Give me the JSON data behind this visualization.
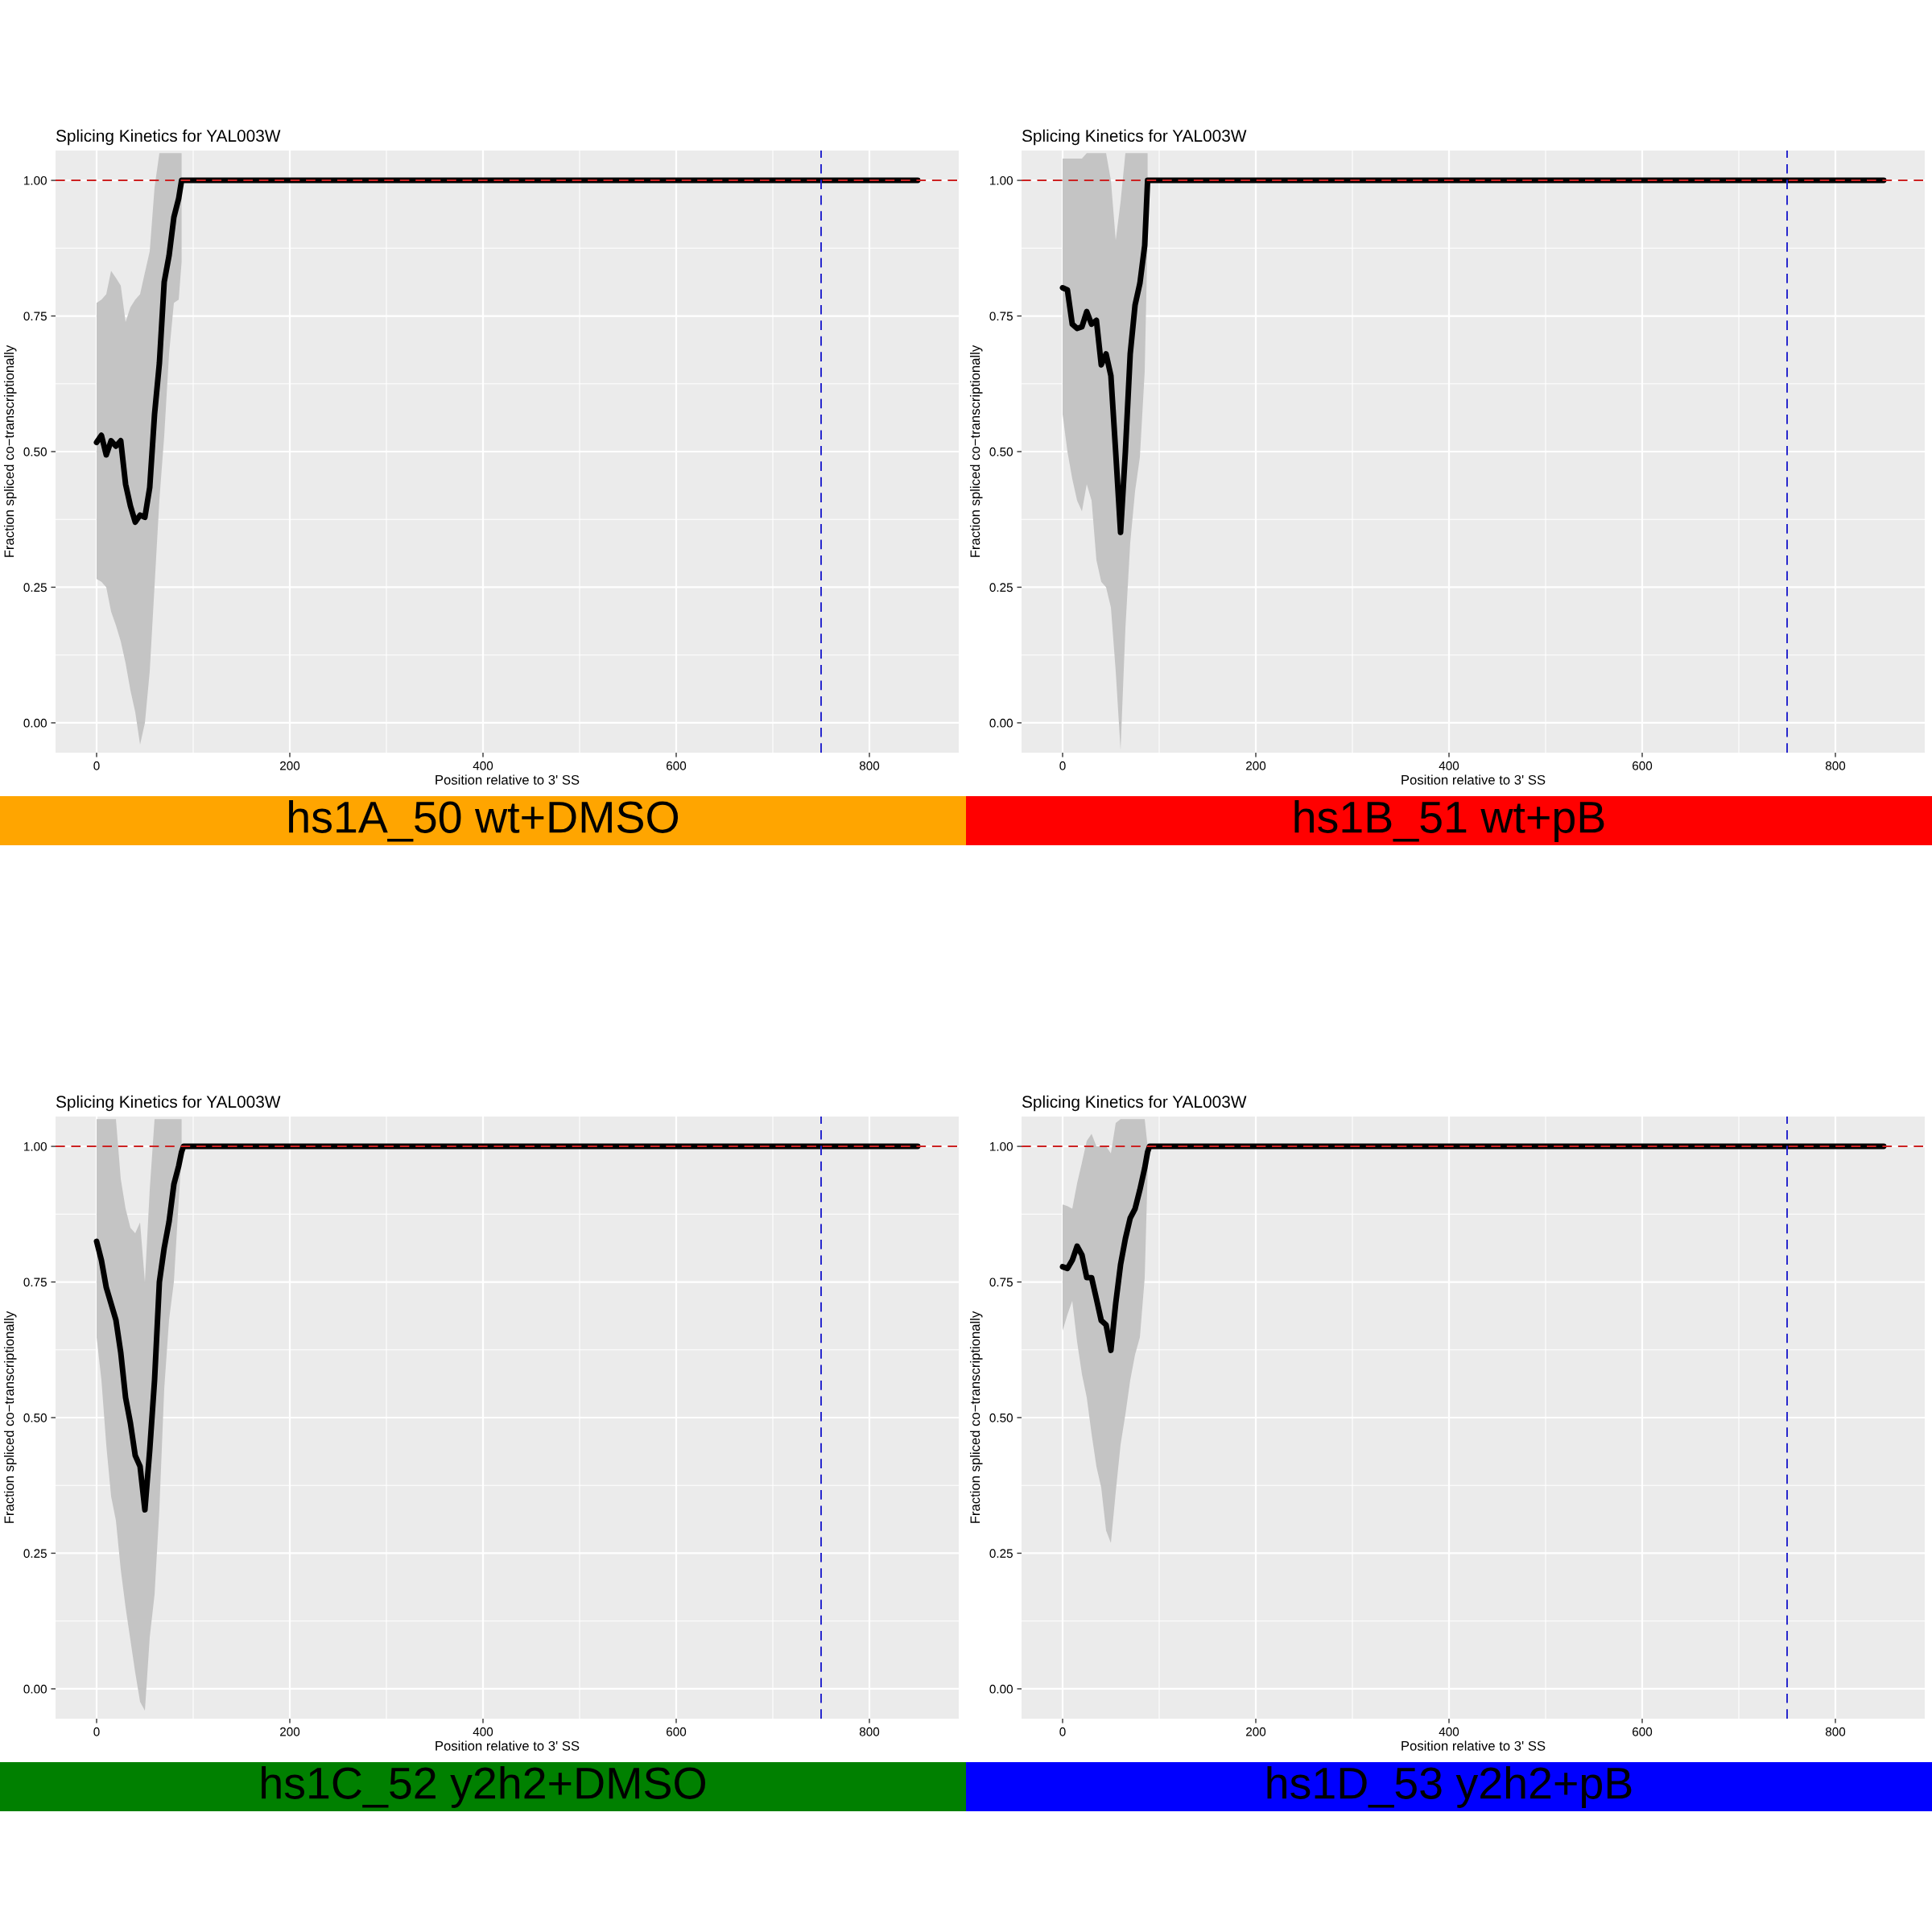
{
  "chart_data": [
    {
      "type": "line",
      "title": "Splicing Kinetics for YAL003W",
      "xlabel": "Position relative to 3' SS",
      "ylabel": "Fraction spliced co−transcriptionally",
      "annotations": [
        "hs1A_50 wt+DMSO"
      ],
      "colors": [
        "#ffa500"
      ],
      "xlim": [
        -42.5,
        892.5
      ],
      "xticks": [
        0,
        200,
        400,
        600,
        800
      ],
      "ylim": [
        -0.055,
        1.055
      ],
      "yticks": [
        {
          "value": 0,
          "label": "0.00"
        },
        {
          "value": 0.25,
          "label": "0.25"
        },
        {
          "value": 0.5,
          "label": "0.50"
        },
        {
          "value": 0.75,
          "label": "0.75"
        },
        {
          "value": 1,
          "label": "1.00"
        }
      ],
      "grid": true,
      "ref_lines": [
        {
          "axis": "y",
          "value": 1,
          "color": "#cc2222",
          "line_style": "dashed"
        },
        {
          "axis": "x",
          "value": 750,
          "color": "#2222cc",
          "line_style": "dashed"
        }
      ],
      "series": [
        {
          "color": "#000000",
          "x": [
            0,
            5,
            10,
            15,
            20,
            25,
            30,
            35,
            40,
            45,
            50,
            55,
            60,
            65,
            70,
            75,
            80,
            85,
            88,
            90,
            850
          ],
          "values": [
            0.517,
            0.53,
            0.494,
            0.52,
            0.51,
            0.52,
            0.44,
            0.4,
            0.37,
            0.383,
            0.379,
            0.434,
            0.569,
            0.663,
            0.813,
            0.861,
            0.932,
            0.967,
            1.0,
            1.0,
            1.0
          ],
          "upper": [
            0.774,
            0.78,
            0.79,
            0.833,
            0.82,
            0.806,
            0.739,
            0.766,
            0.78,
            0.79,
            0.83,
            0.869,
            0.987,
            1.05,
            1.05,
            1.05,
            1.05,
            1.05,
            1.05,
            null,
            null
          ],
          "lower": [
            0.265,
            0.26,
            0.25,
            0.205,
            0.18,
            0.15,
            0.11,
            0.06,
            0.02,
            -0.04,
            0.0,
            0.095,
            0.253,
            0.411,
            0.529,
            0.68,
            0.774,
            0.78,
            0.85,
            null,
            null
          ]
        }
      ]
    },
    {
      "type": "line",
      "title": "Splicing Kinetics for YAL003W",
      "xlabel": "Position relative to 3' SS",
      "ylabel": "Fraction spliced co−transcriptionally",
      "annotations": [
        "hs1B_51 wt+pB"
      ],
      "colors": [
        "#ff0000"
      ],
      "xlim": [
        -42.5,
        892.5
      ],
      "xticks": [
        0,
        200,
        400,
        600,
        800
      ],
      "ylim": [
        -0.055,
        1.055
      ],
      "yticks": [
        {
          "value": 0,
          "label": "0.00"
        },
        {
          "value": 0.25,
          "label": "0.25"
        },
        {
          "value": 0.5,
          "label": "0.50"
        },
        {
          "value": 0.75,
          "label": "0.75"
        },
        {
          "value": 1,
          "label": "1.00"
        }
      ],
      "grid": true,
      "ref_lines": [
        {
          "axis": "y",
          "value": 1,
          "color": "#cc2222",
          "line_style": "dashed"
        },
        {
          "axis": "x",
          "value": 750,
          "color": "#2222cc",
          "line_style": "dashed"
        }
      ],
      "series": [
        {
          "color": "#000000",
          "x": [
            0,
            5,
            10,
            15,
            20,
            25,
            30,
            35,
            40,
            45,
            50,
            55,
            60,
            65,
            70,
            75,
            80,
            85,
            88,
            90,
            850
          ],
          "values": [
            0.802,
            0.798,
            0.735,
            0.727,
            0.73,
            0.758,
            0.735,
            0.742,
            0.66,
            0.68,
            0.64,
            0.498,
            0.351,
            0.5,
            0.68,
            0.77,
            0.81,
            0.88,
            1.0,
            1.0,
            1.0
          ],
          "upper": [
            1.04,
            1.04,
            1.04,
            1.04,
            1.04,
            1.05,
            1.05,
            1.05,
            1.05,
            1.05,
            1.0,
            0.89,
            0.96,
            1.05,
            1.05,
            1.05,
            1.05,
            1.05,
            1.05,
            null,
            null
          ],
          "lower": [
            0.569,
            0.5,
            0.45,
            0.41,
            0.39,
            0.44,
            0.41,
            0.3,
            0.26,
            0.25,
            0.213,
            0.095,
            -0.05,
            0.174,
            0.332,
            0.427,
            0.49,
            0.648,
            0.9,
            null,
            null
          ]
        }
      ]
    },
    {
      "type": "line",
      "title": "Splicing Kinetics for YAL003W",
      "xlabel": "Position relative to 3' SS",
      "ylabel": "Fraction spliced co−transcriptionally",
      "annotations": [
        "hs1C_52 y2h2+DMSO"
      ],
      "colors": [
        "#008000"
      ],
      "xlim": [
        -42.5,
        892.5
      ],
      "xticks": [
        0,
        200,
        400,
        600,
        800
      ],
      "ylim": [
        -0.055,
        1.055
      ],
      "yticks": [
        {
          "value": 0,
          "label": "0.00"
        },
        {
          "value": 0.25,
          "label": "0.25"
        },
        {
          "value": 0.5,
          "label": "0.50"
        },
        {
          "value": 0.75,
          "label": "0.75"
        },
        {
          "value": 1,
          "label": "1.00"
        }
      ],
      "grid": true,
      "ref_lines": [
        {
          "axis": "y",
          "value": 1,
          "color": "#cc2222",
          "line_style": "dashed"
        },
        {
          "axis": "x",
          "value": 750,
          "color": "#2222cc",
          "line_style": "dashed"
        }
      ],
      "series": [
        {
          "color": "#000000",
          "x": [
            0,
            5,
            10,
            15,
            20,
            25,
            30,
            35,
            40,
            45,
            50,
            55,
            60,
            65,
            70,
            75,
            80,
            85,
            88,
            90,
            850
          ],
          "values": [
            0.825,
            0.79,
            0.74,
            0.71,
            0.68,
            0.62,
            0.537,
            0.49,
            0.43,
            0.41,
            0.33,
            0.44,
            0.569,
            0.75,
            0.813,
            0.861,
            0.93,
            0.964,
            0.99,
            1.0,
            1.0
          ],
          "upper": [
            1.05,
            1.05,
            1.05,
            1.05,
            1.05,
            0.94,
            0.885,
            0.85,
            0.84,
            0.86,
            0.75,
            0.92,
            1.05,
            1.05,
            1.05,
            1.05,
            1.05,
            1.05,
            1.05,
            null,
            null
          ],
          "lower": [
            0.648,
            0.569,
            0.45,
            0.355,
            0.31,
            0.22,
            0.15,
            0.09,
            0.03,
            -0.024,
            -0.04,
            0.095,
            0.174,
            0.332,
            0.553,
            0.68,
            0.75,
            0.9,
            0.98,
            null,
            null
          ]
        }
      ]
    },
    {
      "type": "line",
      "title": "Splicing Kinetics for YAL003W",
      "xlabel": "Position relative to 3' SS",
      "ylabel": "Fraction spliced co−transcriptionally",
      "annotations": [
        "hs1D_53 y2h2+pB"
      ],
      "colors": [
        "#0000ff"
      ],
      "xlim": [
        -42.5,
        892.5
      ],
      "xticks": [
        0,
        200,
        400,
        600,
        800
      ],
      "ylim": [
        -0.055,
        1.055
      ],
      "yticks": [
        {
          "value": 0,
          "label": "0.00"
        },
        {
          "value": 0.25,
          "label": "0.25"
        },
        {
          "value": 0.5,
          "label": "0.50"
        },
        {
          "value": 0.75,
          "label": "0.75"
        },
        {
          "value": 1,
          "label": "1.00"
        }
      ],
      "grid": true,
      "ref_lines": [
        {
          "axis": "y",
          "value": 1,
          "color": "#cc2222",
          "line_style": "dashed"
        },
        {
          "axis": "x",
          "value": 750,
          "color": "#2222cc",
          "line_style": "dashed"
        }
      ],
      "series": [
        {
          "color": "#000000",
          "x": [
            0,
            5,
            10,
            15,
            20,
            25,
            30,
            35,
            40,
            45,
            50,
            55,
            60,
            65,
            70,
            75,
            80,
            85,
            88,
            90,
            850
          ],
          "values": [
            0.778,
            0.775,
            0.79,
            0.816,
            0.8,
            0.758,
            0.758,
            0.719,
            0.679,
            0.671,
            0.624,
            0.711,
            0.782,
            0.83,
            0.868,
            0.885,
            0.92,
            0.96,
            0.99,
            1.0,
            1.0
          ],
          "upper": [
            0.893,
            0.89,
            0.885,
            0.932,
            0.97,
            1.01,
            1.023,
            1.0,
            1.0,
            1.0,
            0.987,
            1.043,
            1.05,
            1.05,
            1.05,
            1.05,
            1.05,
            1.05,
            1.0,
            null,
            null
          ],
          "lower": [
            0.66,
            0.69,
            0.715,
            0.64,
            0.58,
            0.537,
            0.47,
            0.41,
            0.371,
            0.292,
            0.269,
            0.363,
            0.45,
            0.506,
            0.569,
            0.616,
            0.648,
            0.758,
            0.95,
            null,
            null
          ]
        }
      ]
    }
  ]
}
